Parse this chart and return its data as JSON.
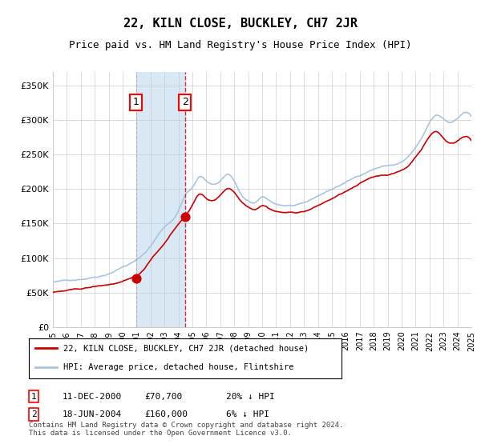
{
  "title": "22, KILN CLOSE, BUCKLEY, CH7 2JR",
  "subtitle": "Price paid vs. HM Land Registry's House Price Index (HPI)",
  "legend_line1": "22, KILN CLOSE, BUCKLEY, CH7 2JR (detached house)",
  "legend_line2": "HPI: Average price, detached house, Flintshire",
  "sale1_label": "1",
  "sale1_date": "11-DEC-2000",
  "sale1_price": "£70,700",
  "sale1_hpi": "20% ↓ HPI",
  "sale2_label": "2",
  "sale2_date": "18-JUN-2004",
  "sale2_price": "£160,000",
  "sale2_hpi": "6% ↓ HPI",
  "footnote": "Contains HM Land Registry data © Crown copyright and database right 2024.\nThis data is licensed under the Open Government Licence v3.0.",
  "ylim": [
    0,
    370000
  ],
  "start_year": 1995,
  "end_year": 2025,
  "hpi_color": "#aac4e0",
  "price_color": "#cc0000",
  "shade_color": "#d8e8f5",
  "grid_color": "#cccccc",
  "bg_color": "#ffffff",
  "sale1_year": 2000.95,
  "sale2_year": 2004.46,
  "sale1_price_val": 70700,
  "sale2_price_val": 160000
}
